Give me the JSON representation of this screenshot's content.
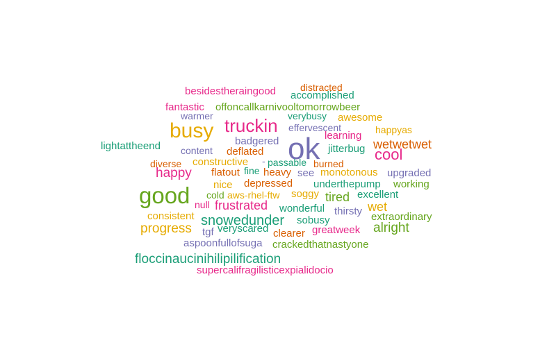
{
  "palette": {
    "teal": "#1b9e77",
    "orange": "#d95f02",
    "purple": "#7570b3",
    "pink": "#e7298a",
    "green": "#66a61e",
    "gold": "#e6ab02"
  },
  "words": [
    {
      "text": "ok",
      "color": "purple"
    },
    {
      "text": "good",
      "color": "green"
    },
    {
      "text": "busy",
      "color": "gold"
    },
    {
      "text": "truckin",
      "color": "pink"
    },
    {
      "text": "cool",
      "color": "pink"
    },
    {
      "text": "wetwetwet",
      "color": "orange"
    },
    {
      "text": "distracted",
      "color": "orange"
    },
    {
      "text": "besidestheraingood",
      "color": "pink"
    },
    {
      "text": "accomplished",
      "color": "teal"
    },
    {
      "text": "fantastic",
      "color": "pink"
    },
    {
      "text": "offoncallkarnivooltomorrowbeer",
      "color": "green"
    },
    {
      "text": "warmer",
      "color": "purple"
    },
    {
      "text": "verybusy",
      "color": "teal"
    },
    {
      "text": "awesome",
      "color": "gold"
    },
    {
      "text": "effervescent",
      "color": "purple"
    },
    {
      "text": "happyas",
      "color": "gold"
    },
    {
      "text": "learning",
      "color": "pink"
    },
    {
      "text": "badgered",
      "color": "purple"
    },
    {
      "text": "lightattheend",
      "color": "teal"
    },
    {
      "text": "jitterbug",
      "color": "teal"
    },
    {
      "text": "content",
      "color": "purple"
    },
    {
      "text": "deflated",
      "color": "orange"
    },
    {
      "text": "diverse",
      "color": "orange"
    },
    {
      "text": "constructive",
      "color": "gold"
    },
    {
      "text": "-",
      "color": "purple"
    },
    {
      "text": "passable",
      "color": "teal"
    },
    {
      "text": "burned",
      "color": "orange"
    },
    {
      "text": "happy",
      "color": "pink"
    },
    {
      "text": "flatout",
      "color": "orange"
    },
    {
      "text": "fine",
      "color": "teal"
    },
    {
      "text": "heavy",
      "color": "orange"
    },
    {
      "text": "see",
      "color": "purple"
    },
    {
      "text": "monotonous",
      "color": "gold"
    },
    {
      "text": "upgraded",
      "color": "purple"
    },
    {
      "text": "nice",
      "color": "gold"
    },
    {
      "text": "depressed",
      "color": "orange"
    },
    {
      "text": "underthepump",
      "color": "teal"
    },
    {
      "text": "working",
      "color": "green"
    },
    {
      "text": "cold",
      "color": "green"
    },
    {
      "text": "aws-rhel-ftw",
      "color": "gold"
    },
    {
      "text": "soggy",
      "color": "gold"
    },
    {
      "text": "tired",
      "color": "green"
    },
    {
      "text": "excellent",
      "color": "teal"
    },
    {
      "text": "null",
      "color": "pink"
    },
    {
      "text": "frustrated",
      "color": "pink"
    },
    {
      "text": "wonderful",
      "color": "teal"
    },
    {
      "text": "thirsty",
      "color": "purple"
    },
    {
      "text": "wet",
      "color": "gold"
    },
    {
      "text": "consistent",
      "color": "gold"
    },
    {
      "text": "snowedunder",
      "color": "teal"
    },
    {
      "text": "sobusy",
      "color": "teal"
    },
    {
      "text": "extraordinary",
      "color": "green"
    },
    {
      "text": "progress",
      "color": "gold"
    },
    {
      "text": "tgf",
      "color": "purple"
    },
    {
      "text": "veryscared",
      "color": "teal"
    },
    {
      "text": "clearer",
      "color": "orange"
    },
    {
      "text": "greatweek",
      "color": "pink"
    },
    {
      "text": "alright",
      "color": "green"
    },
    {
      "text": "aspoonfullofsuga",
      "color": "purple"
    },
    {
      "text": "crackedthatnastyone",
      "color": "green"
    },
    {
      "text": "floccinaucinihilipilification",
      "color": "teal"
    },
    {
      "text": "supercalifragilisticexpialidocio",
      "color": "pink"
    }
  ]
}
